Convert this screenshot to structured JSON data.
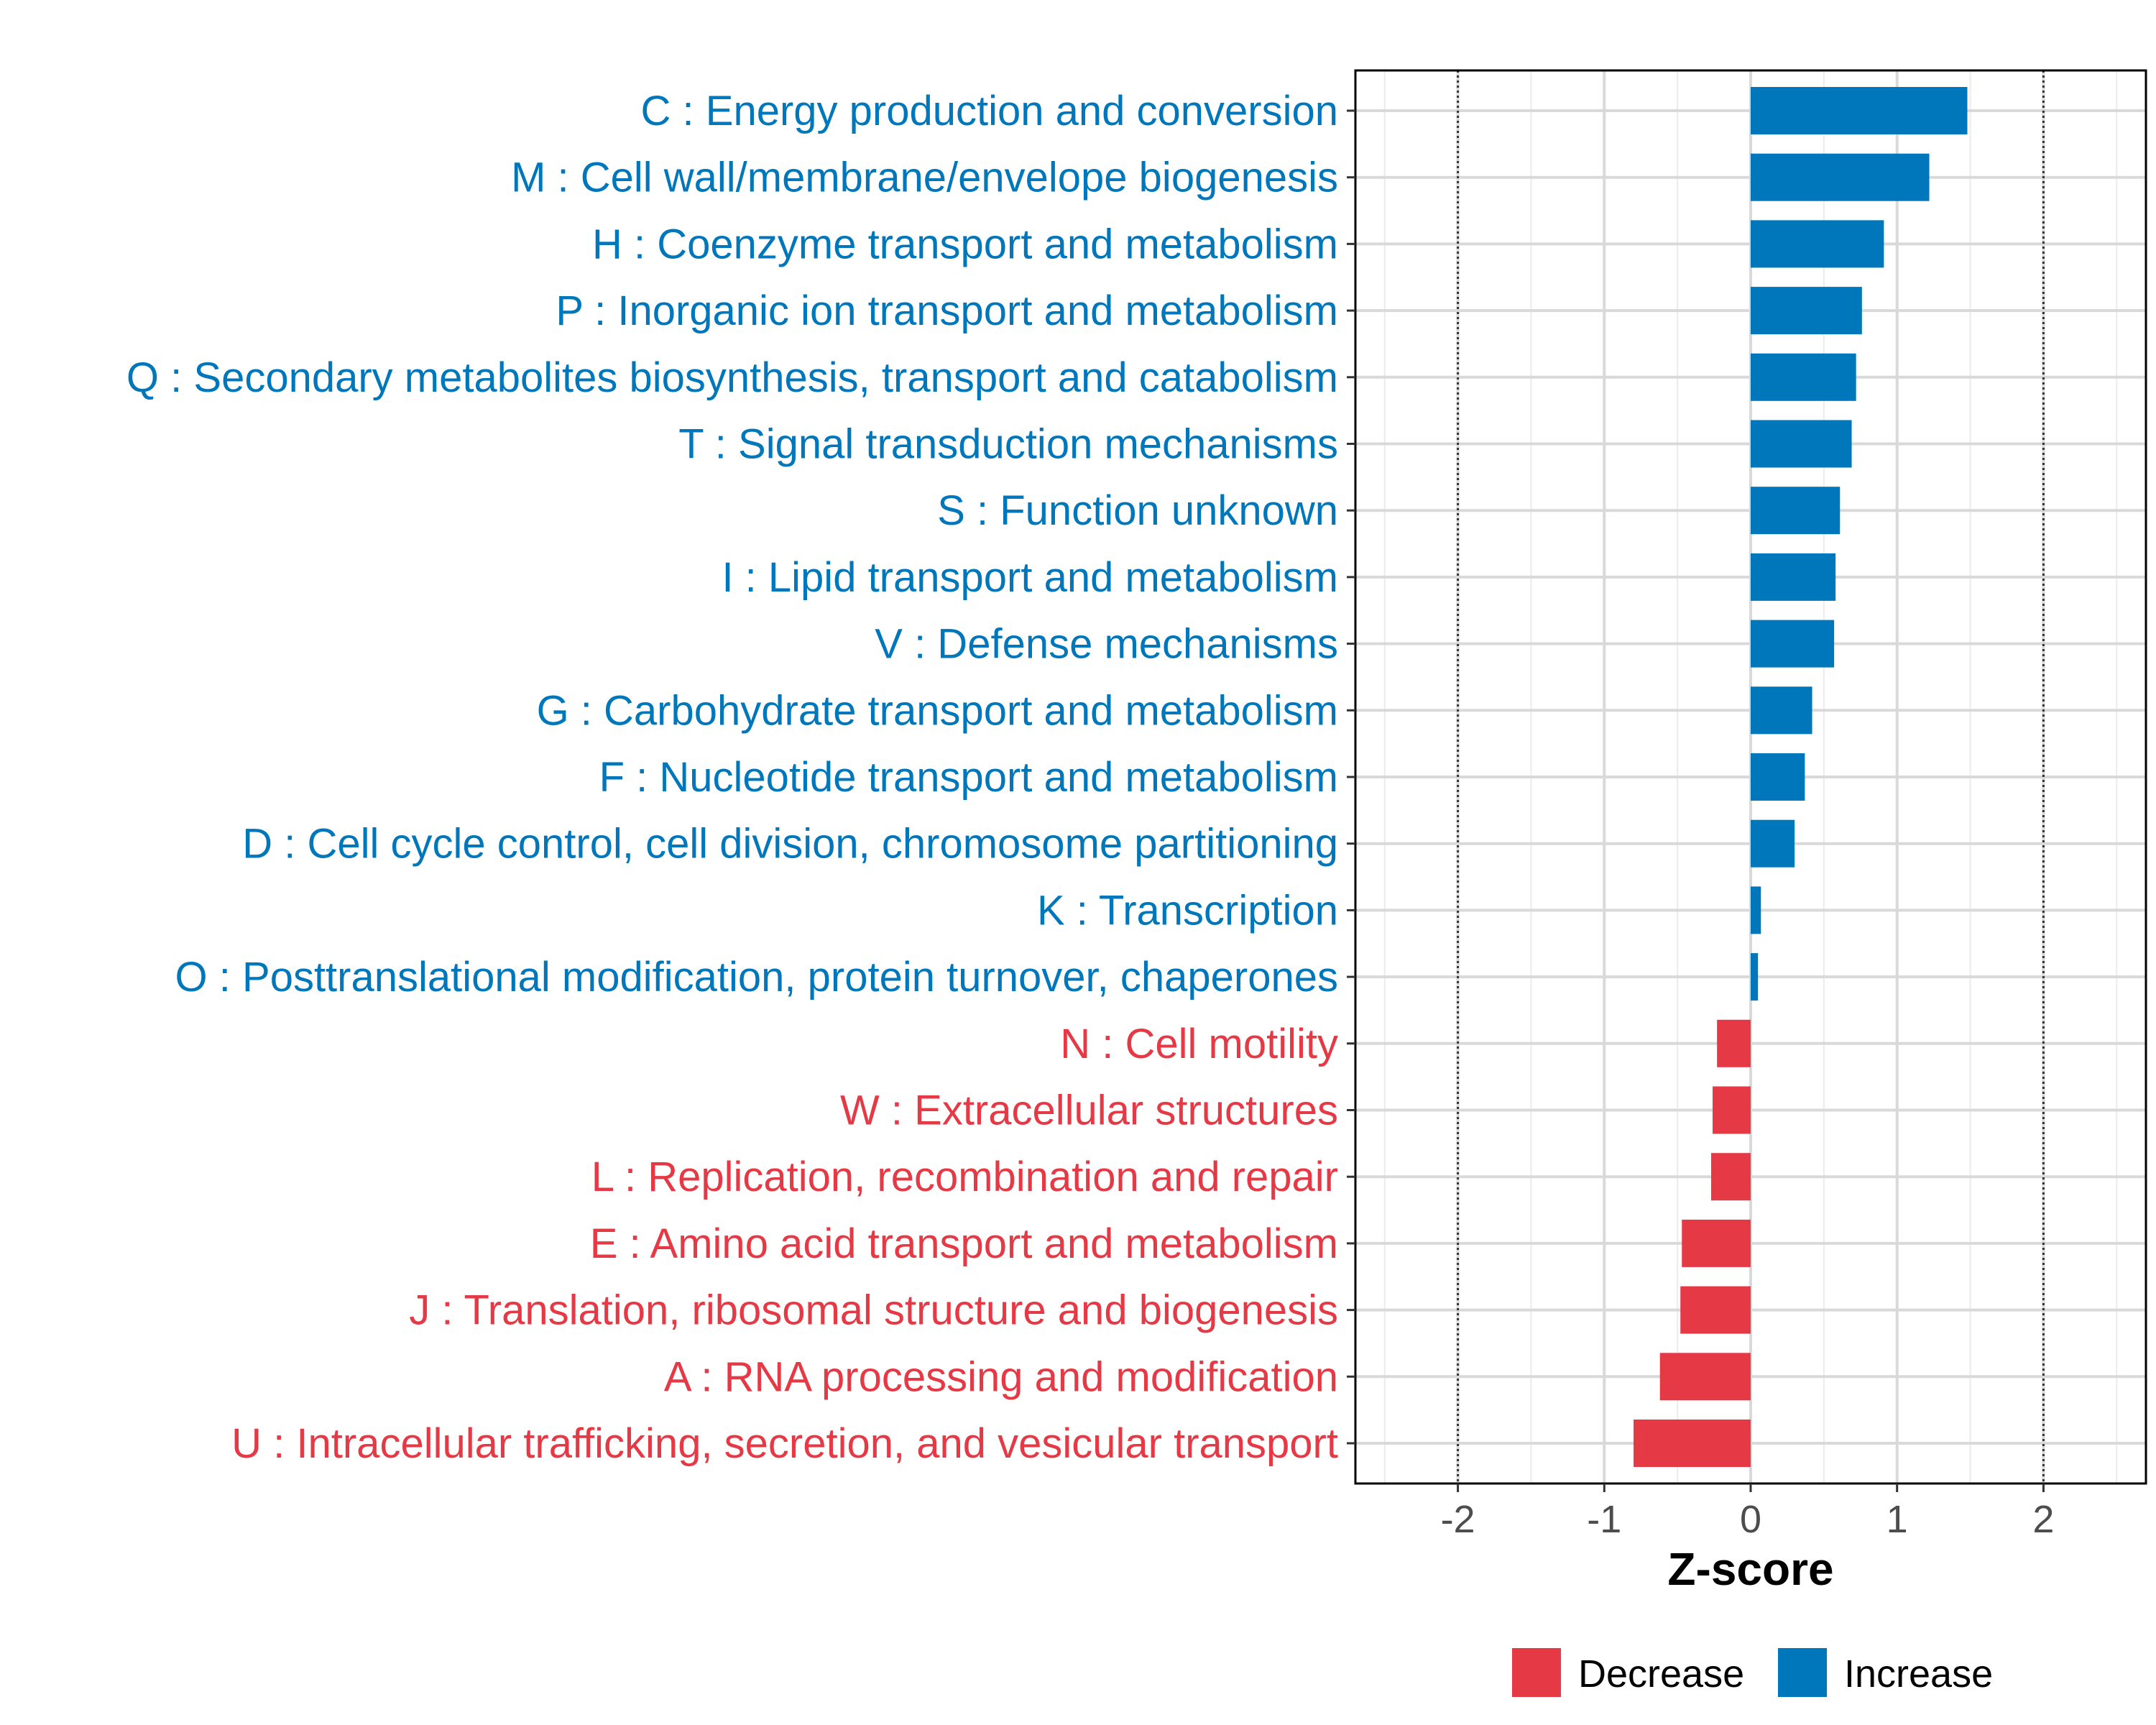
{
  "chart_data": {
    "type": "bar",
    "orientation": "horizontal",
    "title": "",
    "xlabel": "Z-score",
    "ylabel": "",
    "xlim": [
      -2.7,
      2.7
    ],
    "xticks": [
      -2,
      -1,
      0,
      1,
      2
    ],
    "xtick_labels": [
      "-2",
      "-1",
      "0",
      "1",
      "2"
    ],
    "reference_lines": [
      -2,
      2
    ],
    "grid": true,
    "legend_position": "bottom",
    "colors": {
      "Decrease": "#e63946",
      "Increase": "#0077bb"
    },
    "legend": [
      {
        "name": "Decrease",
        "color": "#e63946"
      },
      {
        "name": "Increase",
        "color": "#0077bb"
      }
    ],
    "categories": [
      "C : Energy production and conversion",
      "M : Cell wall/membrane/envelope biogenesis",
      "H : Coenzyme transport and metabolism",
      "P : Inorganic ion transport and metabolism",
      "Q : Secondary metabolites biosynthesis, transport and catabolism",
      "T : Signal transduction mechanisms",
      "S : Function unknown",
      "I : Lipid transport and metabolism",
      "V : Defense mechanisms",
      "G : Carbohydrate transport and metabolism",
      "F : Nucleotide transport and metabolism",
      "D : Cell cycle control, cell division, chromosome partitioning",
      "K : Transcription",
      "O : Posttranslational modification, protein turnover, chaperones",
      "N : Cell motility",
      "W : Extracellular structures",
      "L : Replication, recombination and repair",
      "E : Amino acid transport and metabolism",
      "J : Translation, ribosomal structure and biogenesis",
      "A : RNA processing and modification",
      "U : Intracellular trafficking, secretion, and vesicular transport"
    ],
    "values": [
      1.48,
      1.22,
      0.91,
      0.76,
      0.72,
      0.69,
      0.61,
      0.58,
      0.57,
      0.42,
      0.37,
      0.3,
      0.07,
      0.05,
      -0.23,
      -0.26,
      -0.27,
      -0.47,
      -0.48,
      -0.62,
      -0.8
    ],
    "groups": [
      "Increase",
      "Increase",
      "Increase",
      "Increase",
      "Increase",
      "Increase",
      "Increase",
      "Increase",
      "Increase",
      "Increase",
      "Increase",
      "Increase",
      "Increase",
      "Increase",
      "Decrease",
      "Decrease",
      "Decrease",
      "Decrease",
      "Decrease",
      "Decrease",
      "Decrease"
    ]
  }
}
